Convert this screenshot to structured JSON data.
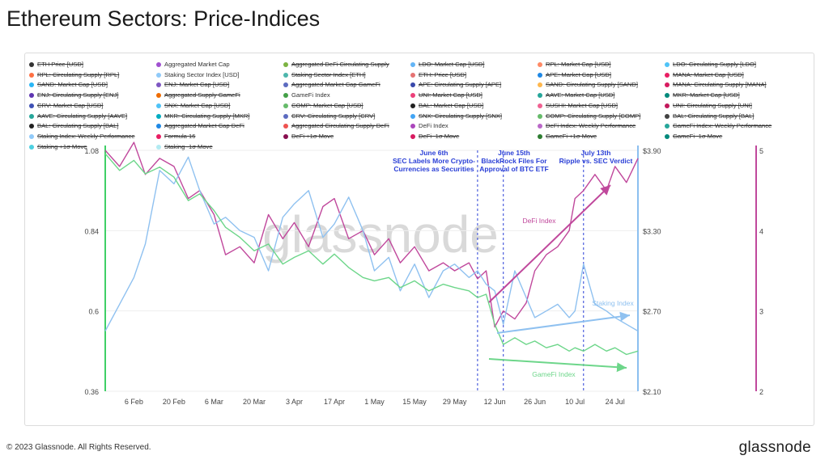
{
  "title": "Ethereum Sectors: Price-Indices",
  "footer": {
    "copyright": "© 2023 Glassnode. All Rights Reserved.",
    "brand": "glassnode"
  },
  "watermark": "glassnode",
  "colors": {
    "defi": "#c0489c",
    "staking": "#8fc1f0",
    "gamefi": "#6dd68a",
    "left_axis": "#3fcf66",
    "mid_axis": "#8cbff0",
    "right_axis": "#c0489c",
    "event_line": "#2a3fd6",
    "event_text": "#2a3fd6"
  },
  "legend": [
    {
      "label": "ETH Price [USD]",
      "color": "#333333",
      "active": false
    },
    {
      "label": "Aggregated Market Cap",
      "color": "#a050d0",
      "active": true
    },
    {
      "label": "Aggregated DeFi Circulating Supply",
      "color": "#7cb342",
      "active": false
    },
    {
      "label": "LDO: Market Cap [USD]",
      "color": "#64b5f6",
      "active": false
    },
    {
      "label": "RPL: Market Cap [USD]",
      "color": "#ff8a65",
      "active": false
    },
    {
      "label": "LDO: Circulating Supply [LDO]",
      "color": "#4fc3f7",
      "active": false
    },
    {
      "label": "RPL: Circulating Supply [RPL]",
      "color": "#ff7043",
      "active": false
    },
    {
      "label": "Staking Sector Index [USD]",
      "color": "#90caf9",
      "active": true
    },
    {
      "label": "Staking Sector Index [ETH]",
      "color": "#4db6ac",
      "active": false
    },
    {
      "label": "ETH: Price [USD]",
      "color": "#e57373",
      "active": false
    },
    {
      "label": "APE: Market Cap [USD]",
      "color": "#1e88e5",
      "active": false
    },
    {
      "label": "MANA: Market Cap [USD]",
      "color": "#e91e63",
      "active": false
    },
    {
      "label": "SAND: Market Cap [USD]",
      "color": "#29b6f6",
      "active": false
    },
    {
      "label": "ENJ: Market Cap [USD]",
      "color": "#7e57c2",
      "active": false
    },
    {
      "label": "Aggregated Market Cap GameFi",
      "color": "#5c6bc0",
      "active": false
    },
    {
      "label": "APE: Circulating Supply [APE]",
      "color": "#3949ab",
      "active": false
    },
    {
      "label": "SAND: Circulating Supply [SAND]",
      "color": "#ffb74d",
      "active": false
    },
    {
      "label": "MANA: Circulating Supply [MANA]",
      "color": "#d81b60",
      "active": false
    },
    {
      "label": "ENJ: Circulating Supply [ENJ]",
      "color": "#5e35b1",
      "active": false
    },
    {
      "label": "Aggregated Supply GameFi",
      "color": "#ef6c00",
      "active": false
    },
    {
      "label": "GameFi Index",
      "color": "#43a047",
      "active": true
    },
    {
      "label": "UNI: Market Cap [USD]",
      "color": "#ec407a",
      "active": false
    },
    {
      "label": "AAVE: Market Cap [USD]",
      "color": "#26a69a",
      "active": false
    },
    {
      "label": "MKR: Market Cap [USD]",
      "color": "#00897b",
      "active": false
    },
    {
      "label": "CRV: Market Cap [USD]",
      "color": "#3f51b5",
      "active": false
    },
    {
      "label": "SNX: Market Cap [USD]",
      "color": "#4fc3f7",
      "active": false
    },
    {
      "label": "COMP: Market Cap [USD]",
      "color": "#66bb6a",
      "active": false
    },
    {
      "label": "BAL: Market Cap [USD]",
      "color": "#212121",
      "active": false
    },
    {
      "label": "SUSHI: Market Cap [USD]",
      "color": "#f06292",
      "active": false
    },
    {
      "label": "UNI: Circulating Supply [UNI]",
      "color": "#c2185b",
      "active": false
    },
    {
      "label": "AAVE: Circulating Supply [AAVE]",
      "color": "#26a69a",
      "active": false
    },
    {
      "label": "MKR: Circulating Supply [MKR]",
      "color": "#00acc1",
      "active": false
    },
    {
      "label": "CRV: Circulating Supply [CRV]",
      "color": "#5c6bc0",
      "active": false
    },
    {
      "label": "SNX: Circulating Supply [SNX]",
      "color": "#42a5f5",
      "active": false
    },
    {
      "label": "COMP: Circulating Supply [COMP]",
      "color": "#66bb6a",
      "active": false
    },
    {
      "label": "BAL: Circulating Supply [BAL]",
      "color": "#424242",
      "active": false
    },
    {
      "label": "BAL: Circulating Supply [BAL]",
      "color": "#212121",
      "active": false
    },
    {
      "label": "Aggregated Market Cap DeFi",
      "color": "#1e88e5",
      "active": false
    },
    {
      "label": "Aggregated Circulating Supply DeFi",
      "color": "#ef5350",
      "active": false
    },
    {
      "label": "DeFi Index",
      "color": "#ab47bc",
      "active": true
    },
    {
      "label": "DeFi Index: Weekly Performance",
      "color": "#ba68c8",
      "active": false
    },
    {
      "label": "GameFi Index: Weekly Performance",
      "color": "#26a69a",
      "active": false
    },
    {
      "label": "Staking Index: Weekly Performance",
      "color": "#90caf9",
      "active": false
    },
    {
      "label": "Formula 16",
      "color": "#e91e63",
      "active": false
    },
    {
      "label": "DeFi +1σ Move",
      "color": "#880e4f",
      "active": false
    },
    {
      "label": "DeFi -1σ Move",
      "color": "#d81b60",
      "active": false
    },
    {
      "label": "GameFi +1σ Move",
      "color": "#2e7d32",
      "active": false
    },
    {
      "label": "GameFi -1σ Move",
      "color": "#00897b",
      "active": false
    },
    {
      "label": "Staking +1σ Move",
      "color": "#4dd0e1",
      "active": false
    },
    {
      "label": "Staking -1σ Move",
      "color": "#b2ebf2",
      "active": false
    }
  ],
  "chart_data": {
    "type": "line",
    "x_ticks": [
      "6 Feb",
      "20 Feb",
      "6 Mar",
      "20 Mar",
      "3 Apr",
      "17 Apr",
      "1 May",
      "15 May",
      "29 May",
      "12 Jun",
      "26 Jun",
      "10 Jul",
      "24 Jul"
    ],
    "x_range": [
      "2023-01-27",
      "2023-08-01"
    ],
    "left_axis": {
      "ticks": [
        "1.08",
        "0.84",
        "0.6",
        "0.36"
      ],
      "range": [
        0.36,
        1.08
      ]
    },
    "mid_axis": {
      "ticks": [
        "$3.90",
        "$3.30",
        "$2.70",
        "$2.10"
      ],
      "range": [
        2.1,
        3.9
      ]
    },
    "right_axis": {
      "ticks": [
        "5",
        "4",
        "3",
        "2"
      ],
      "range": [
        2,
        5
      ]
    },
    "series": [
      {
        "name": "DeFi Index",
        "axis": "right",
        "color": "#c0489c",
        "x": [
          "2023-01-27",
          "2023-02-01",
          "2023-02-06",
          "2023-02-10",
          "2023-02-15",
          "2023-02-20",
          "2023-02-25",
          "2023-03-01",
          "2023-03-06",
          "2023-03-10",
          "2023-03-15",
          "2023-03-20",
          "2023-03-25",
          "2023-03-30",
          "2023-04-03",
          "2023-04-08",
          "2023-04-13",
          "2023-04-17",
          "2023-04-22",
          "2023-04-27",
          "2023-05-01",
          "2023-05-06",
          "2023-05-10",
          "2023-05-15",
          "2023-05-20",
          "2023-05-25",
          "2023-05-29",
          "2023-06-03",
          "2023-06-06",
          "2023-06-09",
          "2023-06-12",
          "2023-06-15",
          "2023-06-19",
          "2023-06-23",
          "2023-06-26",
          "2023-06-30",
          "2023-07-04",
          "2023-07-08",
          "2023-07-10",
          "2023-07-13",
          "2023-07-17",
          "2023-07-21",
          "2023-07-24",
          "2023-07-28",
          "2023-08-01"
        ],
        "values": [
          5.0,
          4.8,
          5.1,
          4.7,
          4.9,
          4.8,
          4.4,
          4.5,
          4.2,
          3.7,
          3.8,
          3.6,
          4.2,
          3.9,
          4.1,
          3.8,
          4.3,
          4.4,
          3.9,
          4.0,
          3.7,
          3.9,
          3.6,
          3.8,
          3.5,
          3.6,
          3.5,
          3.6,
          3.4,
          3.5,
          2.8,
          3.0,
          2.9,
          3.1,
          3.5,
          3.7,
          3.8,
          4.0,
          4.4,
          4.5,
          4.7,
          4.5,
          4.8,
          4.6,
          4.9
        ]
      },
      {
        "name": "Staking Index",
        "axis": "mid",
        "color": "#8fc1f0",
        "x": [
          "2023-01-27",
          "2023-02-01",
          "2023-02-06",
          "2023-02-10",
          "2023-02-15",
          "2023-02-20",
          "2023-02-25",
          "2023-03-01",
          "2023-03-06",
          "2023-03-10",
          "2023-03-15",
          "2023-03-20",
          "2023-03-25",
          "2023-03-30",
          "2023-04-03",
          "2023-04-08",
          "2023-04-13",
          "2023-04-17",
          "2023-04-22",
          "2023-04-27",
          "2023-05-01",
          "2023-05-06",
          "2023-05-10",
          "2023-05-15",
          "2023-05-20",
          "2023-05-25",
          "2023-05-29",
          "2023-06-03",
          "2023-06-06",
          "2023-06-09",
          "2023-06-12",
          "2023-06-15",
          "2023-06-19",
          "2023-06-23",
          "2023-06-26",
          "2023-06-30",
          "2023-07-04",
          "2023-07-08",
          "2023-07-10",
          "2023-07-13",
          "2023-07-17",
          "2023-07-21",
          "2023-07-24",
          "2023-07-28",
          "2023-08-01"
        ],
        "values": [
          2.55,
          2.75,
          2.95,
          3.2,
          3.75,
          3.65,
          3.85,
          3.6,
          3.35,
          3.4,
          3.3,
          3.25,
          3.0,
          3.4,
          3.5,
          3.6,
          3.25,
          3.35,
          3.55,
          3.3,
          3.0,
          3.1,
          2.85,
          3.05,
          2.8,
          3.0,
          3.05,
          2.95,
          3.0,
          2.9,
          2.85,
          2.6,
          3.0,
          2.8,
          2.65,
          2.7,
          2.75,
          2.65,
          2.7,
          3.05,
          2.75,
          2.7,
          2.65,
          2.6,
          2.55
        ]
      },
      {
        "name": "GameFi Index",
        "axis": "left",
        "color": "#6dd68a",
        "x": [
          "2023-01-27",
          "2023-02-01",
          "2023-02-06",
          "2023-02-10",
          "2023-02-15",
          "2023-02-20",
          "2023-02-25",
          "2023-03-01",
          "2023-03-06",
          "2023-03-10",
          "2023-03-15",
          "2023-03-20",
          "2023-03-25",
          "2023-03-30",
          "2023-04-03",
          "2023-04-08",
          "2023-04-13",
          "2023-04-17",
          "2023-04-22",
          "2023-04-27",
          "2023-05-01",
          "2023-05-06",
          "2023-05-10",
          "2023-05-15",
          "2023-05-20",
          "2023-05-25",
          "2023-05-29",
          "2023-06-03",
          "2023-06-06",
          "2023-06-09",
          "2023-06-12",
          "2023-06-15",
          "2023-06-19",
          "2023-06-23",
          "2023-06-26",
          "2023-06-30",
          "2023-07-04",
          "2023-07-08",
          "2023-07-10",
          "2023-07-13",
          "2023-07-17",
          "2023-07-21",
          "2023-07-24",
          "2023-07-28",
          "2023-08-01"
        ],
        "values": [
          1.07,
          1.02,
          1.05,
          1.01,
          1.03,
          1.0,
          0.93,
          0.95,
          0.9,
          0.85,
          0.82,
          0.78,
          0.8,
          0.74,
          0.76,
          0.78,
          0.74,
          0.77,
          0.73,
          0.7,
          0.69,
          0.7,
          0.67,
          0.69,
          0.66,
          0.68,
          0.67,
          0.66,
          0.64,
          0.65,
          0.56,
          0.5,
          0.52,
          0.5,
          0.51,
          0.49,
          0.5,
          0.48,
          0.49,
          0.48,
          0.5,
          0.48,
          0.49,
          0.47,
          0.48
        ]
      }
    ],
    "annotations": [
      {
        "date": "2023-06-06",
        "title": "June 6th",
        "text": [
          "SEC Labels More Crypto-",
          "Currencies as Securities"
        ]
      },
      {
        "date": "2023-06-15",
        "title": "June 15th",
        "text": [
          "BlackRock Files For",
          "Approval of BTC ETF"
        ]
      },
      {
        "date": "2023-07-13",
        "title": "July 13th",
        "text": [
          "Ripple vs. SEC Verdict"
        ]
      }
    ],
    "series_labels": [
      {
        "text": "DeFi Index"
      },
      {
        "text": "Staking Index"
      },
      {
        "text": "GameFi Index"
      }
    ]
  }
}
